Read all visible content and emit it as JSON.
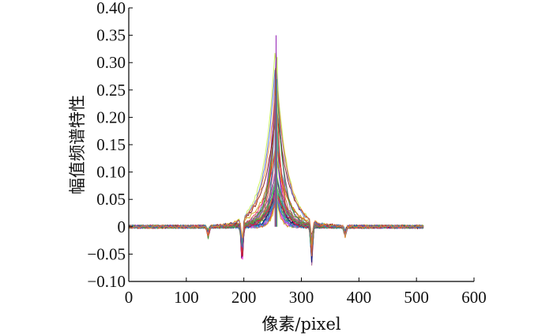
{
  "chart_data": {
    "type": "line",
    "title": "",
    "xlabel": "像素/pixel",
    "ylabel": "幅值频谱特性",
    "xlim": [
      0,
      600
    ],
    "ylim": [
      -0.1,
      0.4
    ],
    "x_ticks": [
      "0",
      "100",
      "200",
      "300",
      "400",
      "500",
      "600"
    ],
    "y_ticks": [
      "−0.10",
      "−0.05",
      "0",
      "0.05",
      "0.10",
      "0.15",
      "0.20",
      "0.25",
      "0.30",
      "0.35",
      "0.40"
    ],
    "grid": false,
    "legend": "none",
    "x_range_data": [
      0,
      512
    ],
    "peak": {
      "x": 256,
      "y": 0.35
    },
    "secondary_peaks": [
      {
        "x": 258,
        "y": 0.31
      },
      {
        "x": 255,
        "y": 0.29
      },
      {
        "x": 257,
        "y": 0.27
      },
      {
        "x": 254,
        "y": 0.24
      }
    ],
    "negative_dips": [
      {
        "x": 138,
        "y": -0.02
      },
      {
        "x": 197,
        "y": -0.07
      },
      {
        "x": 318,
        "y": -0.07
      },
      {
        "x": 376,
        "y": -0.02
      }
    ],
    "series_count": 40,
    "colors": [
      "#e6194b",
      "#3cb44b",
      "#4363d8",
      "#f58231",
      "#911eb4",
      "#42d4f4",
      "#f032e6",
      "#bfef45",
      "#c8a000",
      "#469990",
      "#9a6324",
      "#800000",
      "#000075",
      "#1f77b4",
      "#2ca02c",
      "#d62728",
      "#9467bd",
      "#8c564b"
    ]
  }
}
